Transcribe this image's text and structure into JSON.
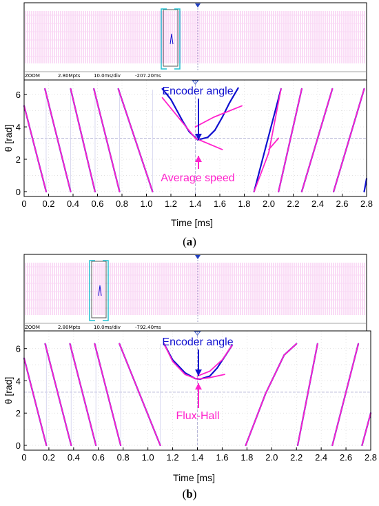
{
  "colors": {
    "encoder": "#1010d0",
    "estimate": "#ff22cc",
    "overview_trace": "#f4b8ee",
    "zoom_box": "#22c0d0",
    "cursor_line": "#b8b8d8",
    "frame": "#000000"
  },
  "chart_data": [
    {
      "type": "line",
      "panel": "a",
      "caption": "(a)",
      "caption_letter": "a",
      "overview": {
        "mode": "ZOOM",
        "points": "2.80Mpts",
        "timebase": "10.0ms/div",
        "offset": "-207.20ms"
      },
      "xlabel": "Time [ms]",
      "ylabel": "θ [rad]",
      "xlim": [
        0,
        2.8
      ],
      "ylim": [
        -0.3,
        6.9
      ],
      "xticks": [
        "0",
        "0.2",
        "0.4",
        "0.6",
        "0.8",
        "1.0",
        "1.2",
        "1.4",
        "1.6",
        "1.8",
        "2.0",
        "2.2",
        "2.4",
        "2.6",
        "2.8"
      ],
      "yticks": [
        "0",
        "2",
        "4",
        "6"
      ],
      "cursor_time": 1.4,
      "cursor_level": 3.3,
      "annotations": [
        {
          "text": "Encoder angle",
          "color": "encoder"
        },
        {
          "text": "Average speed",
          "color": "estimate"
        }
      ],
      "series": [
        {
          "color": "encoder",
          "lines": [
            [
              [
                0.0,
                5.3
              ],
              [
                0.18,
                0.0
              ]
            ],
            [
              [
                0.17,
                6.35
              ],
              [
                0.38,
                0.0
              ]
            ],
            [
              [
                0.38,
                6.35
              ],
              [
                0.58,
                0.0
              ]
            ],
            [
              [
                0.57,
                6.35
              ],
              [
                0.78,
                0.0
              ]
            ],
            [
              [
                0.77,
                6.35
              ],
              [
                1.05,
                0.0
              ]
            ],
            [
              [
                1.13,
                6.35
              ],
              [
                1.2,
                5.7
              ],
              [
                1.3,
                4.3
              ],
              [
                1.35,
                3.7
              ],
              [
                1.42,
                3.2
              ],
              [
                1.5,
                3.35
              ],
              [
                1.56,
                3.8
              ],
              [
                1.62,
                4.6
              ],
              [
                1.68,
                5.5
              ],
              [
                1.75,
                6.4
              ]
            ],
            [
              [
                1.88,
                0.0
              ],
              [
                2.1,
                6.35
              ]
            ],
            [
              [
                2.08,
                0.0
              ],
              [
                2.27,
                6.35
              ]
            ],
            [
              [
                2.27,
                0.0
              ],
              [
                2.52,
                6.35
              ]
            ],
            [
              [
                2.53,
                0.0
              ],
              [
                2.78,
                6.35
              ]
            ],
            [
              [
                2.78,
                0.0
              ],
              [
                2.8,
                0.8
              ]
            ]
          ]
        },
        {
          "color": "estimate",
          "lines": [
            [
              [
                0.0,
                5.3
              ],
              [
                0.18,
                0.0
              ]
            ],
            [
              [
                0.17,
                6.35
              ],
              [
                0.38,
                0.0
              ]
            ],
            [
              [
                0.38,
                6.35
              ],
              [
                0.58,
                0.0
              ]
            ],
            [
              [
                0.57,
                6.35
              ],
              [
                0.78,
                0.0
              ]
            ],
            [
              [
                0.77,
                6.35
              ],
              [
                1.05,
                0.0
              ]
            ],
            [
              [
                1.13,
                5.8
              ],
              [
                1.4,
                3.3
              ],
              [
                1.62,
                2.6
              ]
            ],
            [
              [
                1.4,
                4.0
              ],
              [
                1.55,
                4.6
              ],
              [
                1.78,
                5.3
              ]
            ],
            [
              [
                1.88,
                0.0
              ],
              [
                2.0,
                2.4
              ],
              [
                2.1,
                6.35
              ]
            ],
            [
              [
                2.0,
                2.6
              ],
              [
                2.08,
                3.3
              ]
            ],
            [
              [
                2.08,
                0.0
              ],
              [
                2.27,
                6.35
              ]
            ],
            [
              [
                2.27,
                0.0
              ],
              [
                2.52,
                6.35
              ]
            ],
            [
              [
                2.53,
                0.0
              ],
              [
                2.78,
                6.35
              ]
            ]
          ]
        }
      ]
    },
    {
      "type": "line",
      "panel": "b",
      "caption": "(b)",
      "caption_letter": "b",
      "overview": {
        "mode": "ZOOM",
        "points": "2.80Mpts",
        "timebase": "10.0ms/div",
        "offset": "-792.40ms"
      },
      "xlabel": "Time [ms]",
      "ylabel": "θ [rad]",
      "xlim": [
        0,
        2.8
      ],
      "ylim": [
        -0.3,
        7.1
      ],
      "xticks": [
        "0",
        "0.2",
        "0.4",
        "0.6",
        "0.8",
        "1.0",
        "1.2",
        "1.4",
        "1.6",
        "1.8",
        "2.0",
        "2.2",
        "2.4",
        "2.6",
        "2.8"
      ],
      "yticks": [
        "0",
        "2",
        "4",
        "6"
      ],
      "cursor_time": 1.4,
      "cursor_level": 3.3,
      "annotations": [
        {
          "text": "Encoder angle",
          "color": "encoder"
        },
        {
          "text": "Flux-Hall",
          "color": "estimate"
        }
      ],
      "series": [
        {
          "color": "encoder",
          "lines": [
            [
              [
                0.0,
                5.4
              ],
              [
                0.18,
                0.0
              ]
            ],
            [
              [
                0.17,
                6.3
              ],
              [
                0.38,
                0.0
              ]
            ],
            [
              [
                0.37,
                6.3
              ],
              [
                0.58,
                0.0
              ]
            ],
            [
              [
                0.57,
                6.3
              ],
              [
                0.78,
                0.0
              ]
            ],
            [
              [
                0.77,
                6.3
              ],
              [
                1.1,
                0.0
              ]
            ],
            [
              [
                1.13,
                6.3
              ],
              [
                1.2,
                5.3
              ],
              [
                1.3,
                4.5
              ],
              [
                1.38,
                4.15
              ],
              [
                1.42,
                4.1
              ],
              [
                1.5,
                4.3
              ],
              [
                1.56,
                4.8
              ],
              [
                1.62,
                5.5
              ],
              [
                1.68,
                6.2
              ]
            ],
            [
              [
                1.79,
                0.0
              ],
              [
                1.95,
                3.2
              ],
              [
                2.1,
                5.6
              ],
              [
                2.2,
                6.3
              ]
            ],
            [
              [
                2.21,
                0.0
              ],
              [
                2.37,
                6.3
              ]
            ],
            [
              [
                2.49,
                0.0
              ],
              [
                2.7,
                6.3
              ]
            ],
            [
              [
                2.73,
                0.0
              ],
              [
                2.8,
                2.0
              ]
            ]
          ]
        },
        {
          "color": "estimate",
          "lines": [
            [
              [
                0.0,
                5.4
              ],
              [
                0.18,
                0.0
              ]
            ],
            [
              [
                0.17,
                6.3
              ],
              [
                0.38,
                0.0
              ]
            ],
            [
              [
                0.37,
                6.3
              ],
              [
                0.58,
                0.0
              ]
            ],
            [
              [
                0.57,
                6.3
              ],
              [
                0.78,
                0.0
              ]
            ],
            [
              [
                0.77,
                6.3
              ],
              [
                1.1,
                0.0
              ]
            ],
            [
              [
                1.13,
                6.3
              ],
              [
                1.2,
                5.2
              ],
              [
                1.3,
                4.4
              ],
              [
                1.4,
                4.1
              ],
              [
                1.5,
                4.2
              ],
              [
                1.62,
                4.4
              ]
            ],
            [
              [
                1.4,
                4.3
              ],
              [
                1.5,
                4.6
              ],
              [
                1.6,
                5.3
              ],
              [
                1.68,
                6.2
              ]
            ],
            [
              [
                1.79,
                0.0
              ],
              [
                1.95,
                3.2
              ],
              [
                2.1,
                5.6
              ],
              [
                2.2,
                6.3
              ]
            ],
            [
              [
                2.21,
                0.0
              ],
              [
                2.37,
                6.3
              ]
            ],
            [
              [
                2.49,
                0.0
              ],
              [
                2.7,
                6.3
              ]
            ],
            [
              [
                2.73,
                0.0
              ],
              [
                2.8,
                2.0
              ]
            ]
          ]
        }
      ]
    }
  ]
}
